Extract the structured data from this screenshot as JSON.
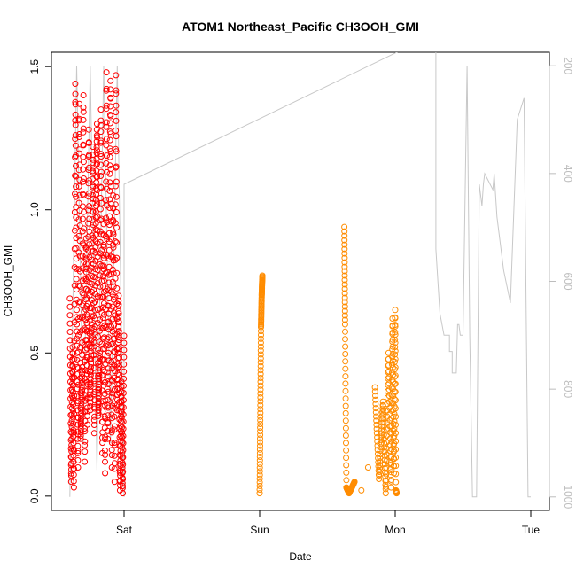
{
  "chart_data": {
    "type": "scatter",
    "title": "ATOM1 Northeast_Pacific CH3OOH_GMI",
    "xlabel": "Date",
    "ylabel": "CH3OOH_GMI",
    "x_ticks": [
      "Sat",
      "Sun",
      "Mon",
      "Tue"
    ],
    "x_range_days": [
      -0.45,
      3.15
    ],
    "ylim": [
      -0.05,
      1.55
    ],
    "y_ticks": [
      "0.0",
      "0.5",
      "1.0",
      "1.5"
    ],
    "y_tick_values": [
      0,
      0.5,
      1.0,
      1.5
    ],
    "y2_ticks": [
      "200",
      "400",
      "600",
      "800",
      "1000"
    ],
    "y2_tick_values": [
      200,
      400,
      600,
      800,
      1000
    ],
    "y2_range": [
      1025,
      175
    ],
    "y2_reversed": true,
    "colors": {
      "series1": "#ff0000",
      "series2": "#ff8c00",
      "altitude": "#c8c8c8",
      "right_axis": "#bdbdbd"
    },
    "series": [
      {
        "color": "#ff0000",
        "x": [
          -0.4,
          -0.39,
          -0.38,
          -0.37,
          -0.36,
          -0.35,
          -0.34,
          -0.33,
          -0.32,
          -0.31,
          -0.3,
          -0.29,
          -0.28,
          -0.27,
          -0.26,
          -0.25,
          -0.24,
          -0.23,
          -0.22,
          -0.21,
          -0.2,
          -0.19,
          -0.18,
          -0.17,
          -0.16,
          -0.15,
          -0.14,
          -0.13,
          -0.12,
          -0.11,
          -0.1,
          -0.09,
          -0.08,
          -0.07,
          -0.06,
          -0.05,
          -0.04,
          -0.03,
          -0.02,
          -0.01,
          0.0
        ],
        "y": [
          0.69,
          0.05,
          0.52,
          0.03,
          1.44,
          0.65,
          0.1,
          1.37,
          0.2,
          0.45,
          1.4,
          0.12,
          0.9,
          0.25,
          1.28,
          0.3,
          0.6,
          1.22,
          0.22,
          0.85,
          1.3,
          0.28,
          0.5,
          1.35,
          0.15,
          0.95,
          0.08,
          1.48,
          0.2,
          0.8,
          1.45,
          0.1,
          1.05,
          0.05,
          1.47,
          0.3,
          0.7,
          0.02,
          0.4,
          0.01,
          0.56
        ]
      },
      {
        "color": "#ff8c00",
        "x": [
          1.0,
          1.005,
          1.01,
          1.015,
          1.02,
          1.625,
          1.63,
          1.64,
          1.66,
          1.7,
          1.75,
          1.8,
          1.85,
          1.88,
          1.91,
          1.93,
          1.95,
          1.97,
          1.98,
          1.99,
          2.0,
          2.005,
          2.01
        ],
        "y": [
          0.01,
          0.29,
          0.59,
          0.7,
          0.77,
          0.94,
          0.6,
          0.03,
          0.01,
          0.05,
          0.02,
          0.1,
          0.38,
          0.06,
          0.33,
          0.01,
          0.5,
          0.03,
          0.62,
          0.08,
          0.65,
          0.02,
          0.01
        ]
      }
    ],
    "altitude": {
      "x": [
        -0.4,
        -0.35,
        -0.3,
        -0.25,
        -0.2,
        -0.15,
        -0.1,
        -0.05,
        0.0,
        0.0,
        2.3,
        2.3,
        2.31,
        2.33,
        2.36,
        2.4,
        2.4,
        2.42,
        2.42,
        2.43,
        2.45,
        2.46,
        2.47,
        2.48,
        2.49,
        2.5,
        2.53,
        2.55,
        2.57,
        2.6,
        2.62,
        2.64,
        2.65,
        2.66,
        2.68,
        2.72,
        2.73,
        2.75,
        2.8,
        2.85,
        2.9,
        2.95,
        2.98,
        2.99,
        3.0
      ],
      "y": [
        1000,
        200,
        900,
        200,
        950,
        200,
        900,
        200,
        1000,
        420,
        140,
        540,
        580,
        660,
        700,
        700,
        730,
        730,
        770,
        770,
        770,
        680,
        680,
        700,
        700,
        700,
        200,
        700,
        1000,
        1000,
        420,
        460,
        420,
        400,
        410,
        430,
        400,
        480,
        580,
        640,
        300,
        260,
        1000,
        1000,
        1000
      ]
    }
  }
}
